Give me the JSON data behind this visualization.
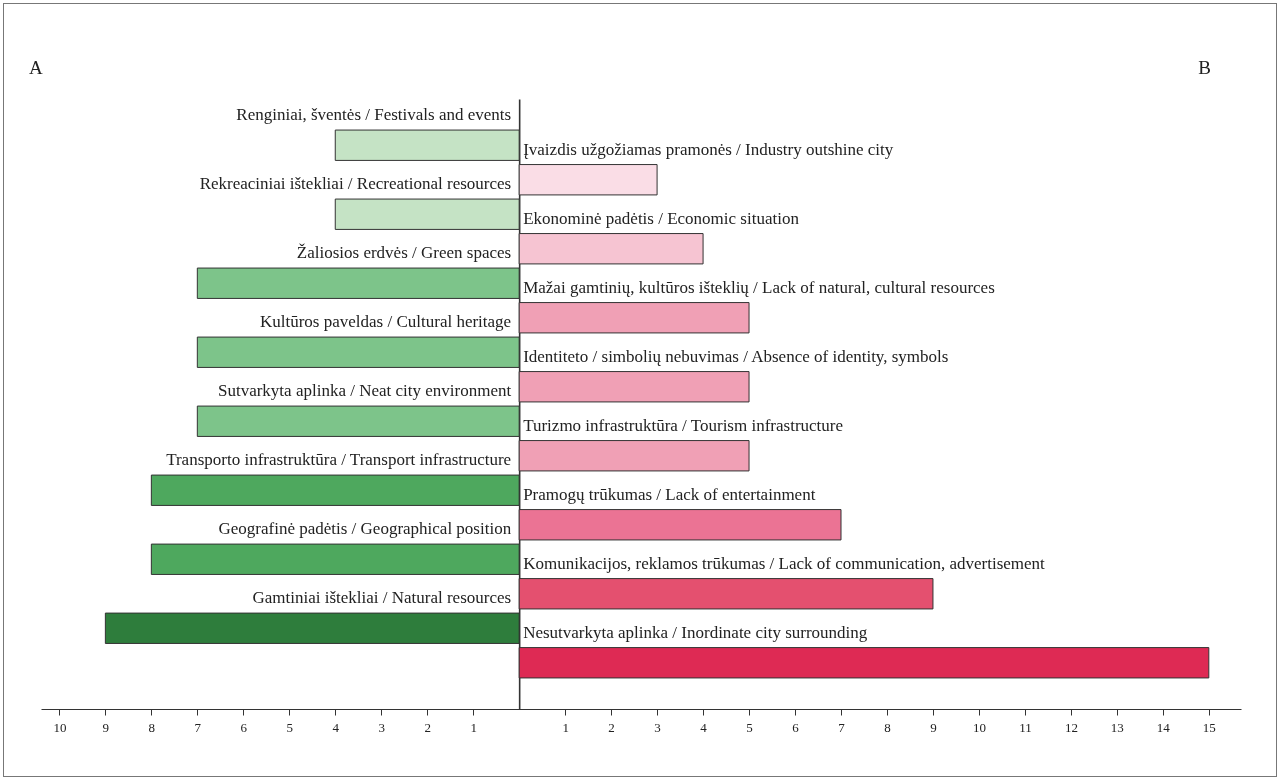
{
  "chart_data": {
    "type": "bar",
    "orientation": "horizontal",
    "categories": [
      "Renginiai, šventės / Festivals and events",
      "Įvaizdis užgožiamas pramonės / Industry outshine city",
      "Rekreaciniai ištekliai / Recreational resources",
      "Ekonominė padėtis / Economic situation",
      "Žaliosios erdvės / Green spaces",
      "Mažai gamtinių, kultūros išteklių / Lack of natural, cultural resources",
      "Kultūros paveldas / Cultural heritage",
      "Identiteto / simbolių nebuvimas / Absence of identity, symbols",
      "Sutvarkyta aplinka / Neat city environment",
      "Turizmo infrastruktūra / Tourism infrastructure",
      "Transporto infrastruktūra / Transport infrastructure",
      "Pramogų trūkumas / Lack of entertainment",
      "Geografinė padėtis / Geographical position",
      "Komunikacijos, reklamos trūkumas / Lack of communication, advertisement",
      "Gamtiniai ištekliai / Natural resources",
      "Nesutvarkyta aplinka / Inordinate city surrounding"
    ],
    "values": [
      -4,
      3,
      -4,
      4,
      -7,
      5,
      -7,
      5,
      -7,
      5,
      -8,
      7,
      -8,
      9,
      -9,
      15
    ],
    "colors": [
      "#c5e3c5",
      "#fadde6",
      "#c5e3c5",
      "#f6c4d2",
      "#7dc48a",
      "#f0a0b5",
      "#7dc48a",
      "#f0a0b5",
      "#7dc48a",
      "#f0a0b5",
      "#4ea85e",
      "#eb7394",
      "#4ea85e",
      "#e4506f",
      "#2e7d3c",
      "#de2a54"
    ],
    "xlim": [
      -10.4,
      15.7
    ],
    "xticks": [
      {
        "value": -10,
        "label": "10"
      },
      {
        "value": -9,
        "label": "9"
      },
      {
        "value": -8,
        "label": "8"
      },
      {
        "value": -7,
        "label": "7"
      },
      {
        "value": -6,
        "label": "6"
      },
      {
        "value": -5,
        "label": "5"
      },
      {
        "value": -4,
        "label": "4"
      },
      {
        "value": -3,
        "label": "3"
      },
      {
        "value": -2,
        "label": "2"
      },
      {
        "value": -1,
        "label": "1"
      },
      1,
      2,
      3,
      4,
      5,
      6,
      7,
      8,
      9,
      10,
      11,
      12,
      13,
      14,
      15
    ],
    "tick_labels": "x",
    "annotations": [
      "A",
      "B"
    ],
    "grid": false
  }
}
